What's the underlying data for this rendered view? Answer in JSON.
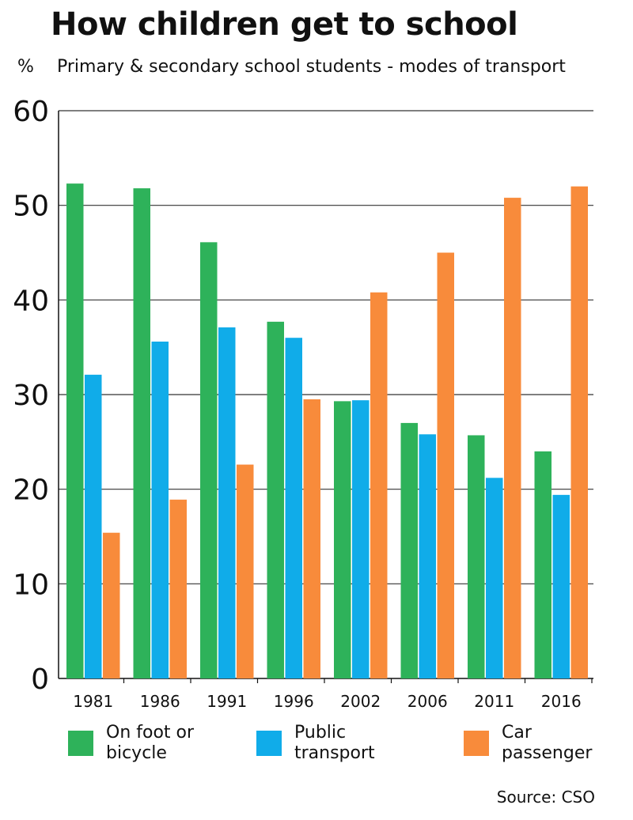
{
  "chart_data": {
    "type": "bar",
    "title": "How children get to school",
    "ylabel": "%",
    "subtitle": "Primary & secondary school students - modes of transport",
    "categories": [
      "1981",
      "1986",
      "1991",
      "1996",
      "2002",
      "2006",
      "2011",
      "2016"
    ],
    "series": [
      {
        "name": "On foot or\nbicycle",
        "color": "#2eb25a",
        "values": [
          52.3,
          51.8,
          46.1,
          37.7,
          29.3,
          27.0,
          25.7,
          24.0
        ]
      },
      {
        "name": "Public\ntransport",
        "color": "#10ace9",
        "values": [
          32.1,
          35.6,
          37.1,
          36.0,
          29.4,
          25.8,
          21.2,
          19.4
        ]
      },
      {
        "name": "Car\npassenger",
        "color": "#f88b3b",
        "values": [
          15.4,
          18.9,
          22.6,
          29.5,
          40.8,
          45.0,
          50.8,
          52.0
        ]
      }
    ],
    "yticks": [
      "0",
      "10",
      "20",
      "30",
      "40",
      "50",
      "60"
    ],
    "ylim": [
      0,
      60
    ],
    "grid": true,
    "legend": "bottom",
    "source": "Source: CSO"
  }
}
